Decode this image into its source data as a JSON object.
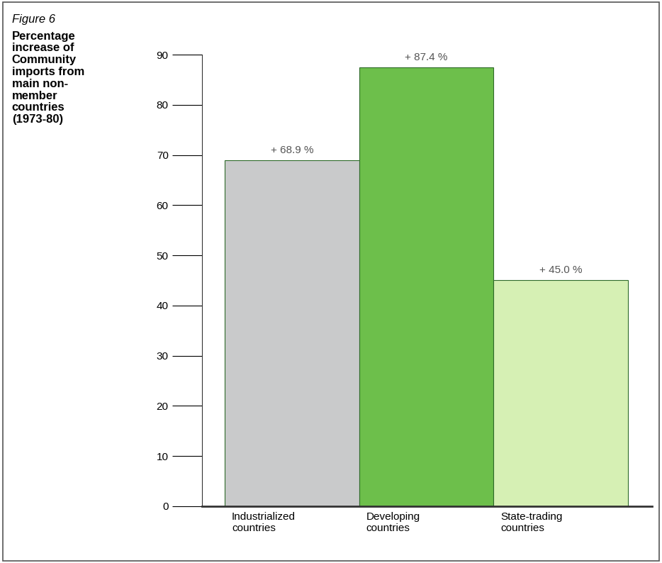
{
  "chart_data": {
    "type": "bar",
    "title": "Percentage increase of Community imports from main non-member countries (1973-80)",
    "annotations": [
      "Figure 6"
    ],
    "categories": [
      "Industrialized countries",
      "Developing countries",
      "State-trading countries"
    ],
    "values": [
      68.9,
      87.4,
      45.0
    ],
    "value_labels": [
      "+ 68.9 %",
      "+ 87.4 %",
      "+ 45.0 %"
    ],
    "colors": [
      "#c9cacb",
      "#6dbf4b",
      "#d6f0b4"
    ],
    "data_labels": true,
    "ylim": [
      0,
      90
    ],
    "yticks": [
      0,
      10,
      20,
      30,
      40,
      50,
      60,
      70,
      80,
      90
    ],
    "grid": false
  }
}
